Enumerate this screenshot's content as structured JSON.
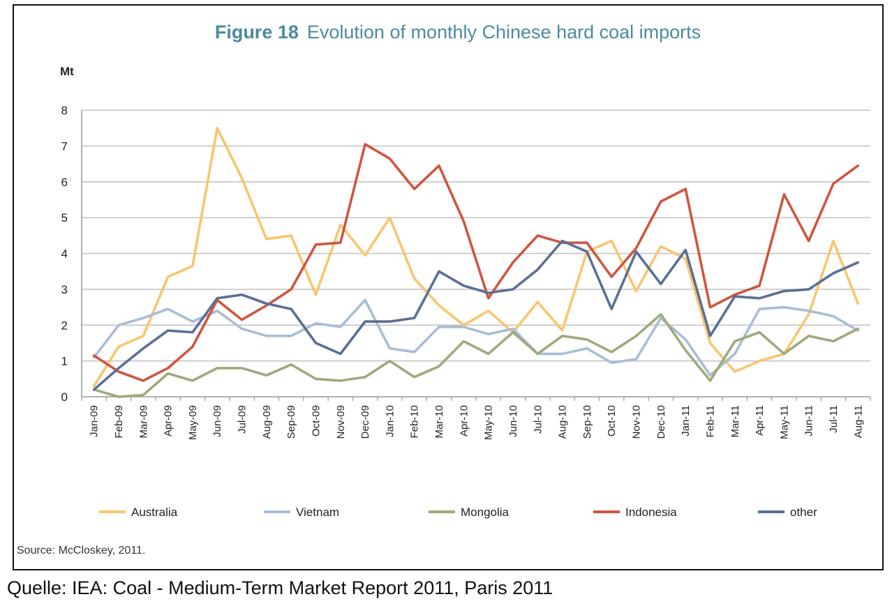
{
  "chart_data": {
    "type": "line",
    "title_prefix": "Figure 18",
    "title": "Evolution of monthly Chinese hard coal imports",
    "ylabel": "Mt",
    "xlabel": "",
    "ylim": [
      0,
      8
    ],
    "yticks": [
      "0",
      "1",
      "2",
      "3",
      "4",
      "5",
      "6",
      "7",
      "8"
    ],
    "grid": "horizontal",
    "legend_position": "bottom",
    "categories": [
      "Jan-09",
      "Feb-09",
      "Mar-09",
      "Apr-09",
      "May-09",
      "Jun-09",
      "Jul-09",
      "Aug-09",
      "Sep-09",
      "Oct-09",
      "Nov-09",
      "Dec-09",
      "Jan-10",
      "Feb-10",
      "Mar-10",
      "Apr-10",
      "May-10",
      "Jun-10",
      "Jul-10",
      "Aug-10",
      "Sep-10",
      "Oct-10",
      "Nov-10",
      "Dec-10",
      "Jan-11",
      "Feb-11",
      "Mar-11",
      "Apr-11",
      "May-11",
      "Jun-11",
      "Jul-11",
      "Aug-11"
    ],
    "series": [
      {
        "name": "Australia",
        "color": "#f9c56e",
        "values": [
          0.3,
          1.4,
          1.7,
          3.35,
          3.65,
          7.5,
          6.1,
          4.4,
          4.5,
          2.85,
          4.8,
          3.95,
          5.0,
          3.3,
          2.55,
          2.0,
          2.4,
          1.8,
          2.65,
          1.85,
          4.05,
          4.35,
          2.95,
          4.2,
          3.85,
          1.5,
          0.7,
          1.0,
          1.2,
          2.3,
          4.35,
          2.6
        ]
      },
      {
        "name": "Vietnam",
        "color": "#a8bdd6",
        "values": [
          1.1,
          2.0,
          2.2,
          2.45,
          2.1,
          2.4,
          1.9,
          1.7,
          1.7,
          2.05,
          1.95,
          2.7,
          1.35,
          1.25,
          1.95,
          1.95,
          1.75,
          1.9,
          1.2,
          1.2,
          1.35,
          0.95,
          1.05,
          2.2,
          1.6,
          0.6,
          1.2,
          2.45,
          2.5,
          2.4,
          2.25,
          1.85
        ]
      },
      {
        "name": "Mongolia",
        "color": "#9eaa7c",
        "values": [
          0.2,
          0.0,
          0.05,
          0.65,
          0.45,
          0.8,
          0.8,
          0.6,
          0.9,
          0.5,
          0.45,
          0.55,
          1.0,
          0.55,
          0.85,
          1.55,
          1.2,
          1.8,
          1.2,
          1.7,
          1.6,
          1.25,
          1.7,
          2.3,
          1.3,
          0.45,
          1.55,
          1.8,
          1.2,
          1.7,
          1.55,
          1.9
        ]
      },
      {
        "name": "Indonesia",
        "color": "#d0553f",
        "values": [
          1.15,
          0.7,
          0.45,
          0.8,
          1.4,
          2.7,
          2.15,
          2.55,
          3.0,
          4.25,
          4.3,
          7.05,
          6.65,
          5.8,
          6.45,
          4.9,
          2.75,
          3.75,
          4.5,
          4.3,
          4.3,
          3.35,
          4.15,
          5.45,
          5.8,
          2.5,
          2.85,
          3.1,
          5.65,
          4.35,
          5.95,
          6.45
        ]
      },
      {
        "name": "other",
        "color": "#5a6f96",
        "values": [
          0.2,
          0.8,
          1.35,
          1.85,
          1.8,
          2.75,
          2.85,
          2.6,
          2.45,
          1.5,
          1.2,
          2.1,
          2.1,
          2.2,
          3.5,
          3.1,
          2.9,
          3.0,
          3.55,
          4.35,
          4.05,
          2.45,
          4.05,
          3.15,
          4.1,
          1.7,
          2.8,
          2.75,
          2.95,
          3.0,
          3.45,
          3.75
        ]
      }
    ],
    "source": "Source: McCloskey, 2011."
  },
  "caption": "Quelle: IEA: Coal - Medium-Term Market Report 2011, Paris 2011",
  "colors": {
    "title": "#4b8aa0",
    "grid": "#c0c0c0",
    "axis": "#999999",
    "frame": "#111111"
  }
}
